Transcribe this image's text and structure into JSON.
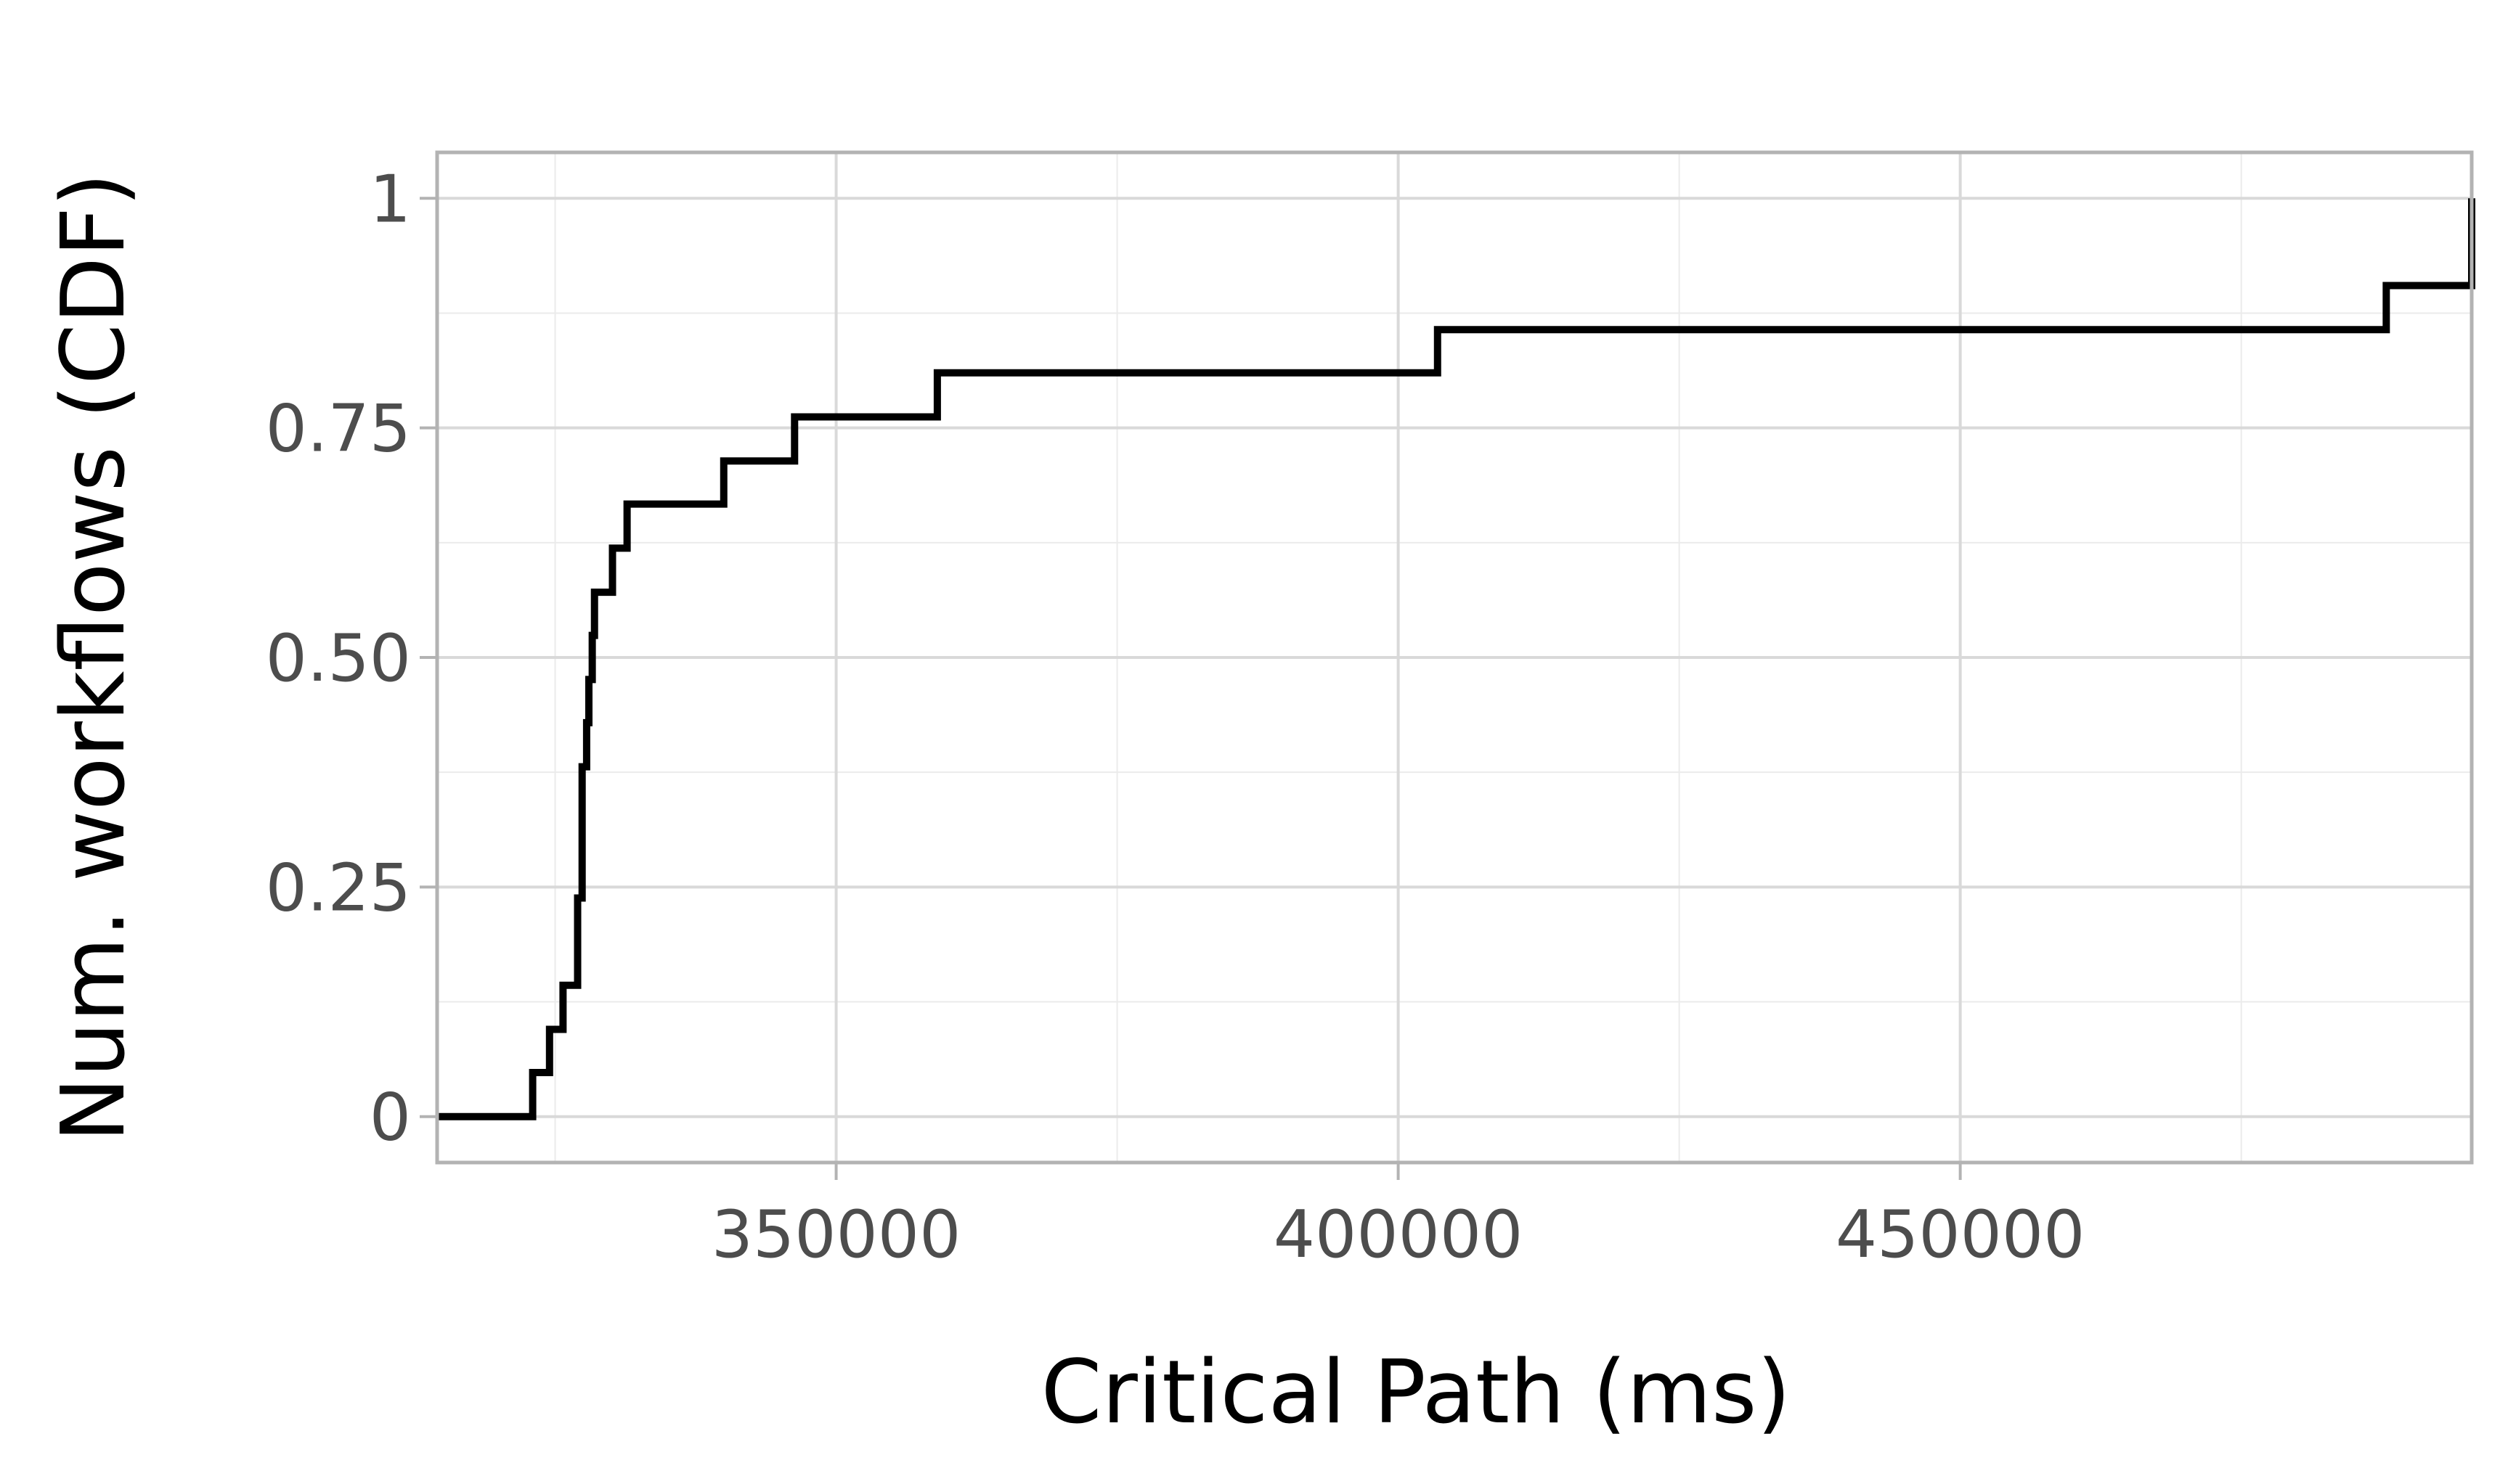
{
  "chart_data": {
    "type": "line",
    "style": "step",
    "xlabel": "Critical Path (ms)",
    "ylabel": "Num. workflows (CDF)",
    "xlim": [
      314500,
      495500
    ],
    "ylim": [
      -0.05,
      1.05
    ],
    "x_ticks": [
      350000,
      400000,
      450000
    ],
    "x_tick_labels": [
      "350000",
      "400000",
      "450000"
    ],
    "y_ticks": [
      0,
      0.25,
      0.5,
      0.75,
      1
    ],
    "y_tick_labels": [
      "0",
      "0.25",
      "0.50",
      "0.75",
      "1"
    ],
    "grid": true,
    "legend": "none",
    "line_color": "#000000",
    "series": [
      {
        "x": [
          314500,
          323000,
          324500,
          325700,
          327000,
          327400,
          327800,
          328000,
          328300,
          328500,
          328700,
          328900,
          330100,
          331400,
          340000,
          346300,
          359000,
          403500,
          487900,
          495500
        ],
        "y": [
          0,
          0.048,
          0.095,
          0.143,
          0.238,
          0.381,
          0.429,
          0.476,
          0.524,
          0.571,
          0.571,
          0.571,
          0.619,
          0.667,
          0.714,
          0.762,
          0.81,
          0.857,
          0.905,
          1.0
        ]
      }
    ]
  }
}
